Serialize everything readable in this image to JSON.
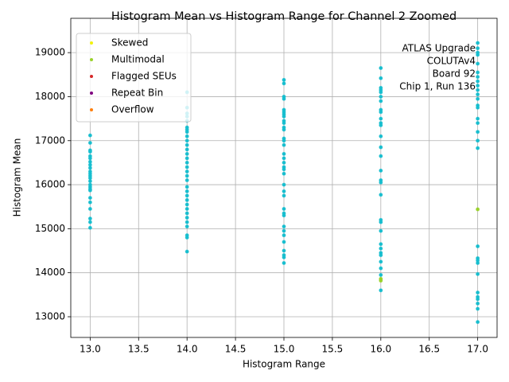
{
  "chart_data": {
    "type": "scatter",
    "title": "Histogram Mean vs Histogram Range for Channel 2 Zoomed",
    "x_label": "Histogram Range",
    "y_label": "Histogram Mean",
    "annotation": [
      "ATLAS Upgrade",
      "COLUTAv4",
      "Board 92",
      "Chip 1, Run 136"
    ],
    "xlim": [
      12.8,
      17.2
    ],
    "ylim": [
      12530,
      19780
    ],
    "xticks": [
      {
        "value": 13,
        "label": "13.0"
      },
      {
        "value": 13.5,
        "label": "13.5"
      },
      {
        "value": 14,
        "label": "14.0"
      },
      {
        "value": 14.5,
        "label": "14.5"
      },
      {
        "value": 15,
        "label": "15.0"
      },
      {
        "value": 15.5,
        "label": "15.5"
      },
      {
        "value": 16,
        "label": "16.0"
      },
      {
        "value": 16.5,
        "label": "16.5"
      },
      {
        "value": 17,
        "label": "17.0"
      }
    ],
    "yticks": [
      13000,
      14000,
      15000,
      16000,
      17000,
      18000,
      19000
    ],
    "grid": true,
    "legend": "upper left",
    "series": [
      {
        "color": "#17becf",
        "x": [
          13,
          13,
          13,
          13,
          13,
          13,
          13,
          13,
          13,
          13,
          13,
          13,
          13,
          13,
          13,
          13,
          13,
          13,
          13,
          13,
          13,
          13,
          13,
          13,
          14,
          14,
          14,
          14,
          14,
          14,
          14,
          14,
          14,
          14,
          14,
          14,
          14,
          14,
          14,
          14,
          14,
          14,
          14,
          14,
          14,
          14,
          14,
          14,
          14,
          14,
          14,
          14,
          14,
          14,
          14,
          14,
          15,
          15,
          15,
          15,
          15,
          15,
          15,
          15,
          15,
          15,
          15,
          15,
          15,
          15,
          15,
          15,
          15,
          15,
          15,
          15,
          15,
          15,
          15,
          15,
          15,
          15,
          15,
          15,
          15,
          15,
          15,
          15,
          15,
          15,
          15,
          16,
          16,
          16,
          16,
          16,
          16,
          16,
          16,
          16,
          16,
          16,
          16,
          16,
          16,
          16,
          16,
          16,
          16,
          16,
          16,
          16,
          16,
          16,
          16,
          16,
          16,
          16,
          16,
          16,
          16,
          17,
          17,
          17,
          17,
          17,
          17,
          17,
          17,
          17,
          17,
          17,
          17,
          17,
          17,
          17,
          17,
          17,
          17,
          17,
          17,
          17,
          17,
          17,
          17,
          17,
          17,
          17,
          17,
          17,
          17
        ],
        "values": [
          17120,
          16950,
          16780,
          16750,
          16650,
          16600,
          16520,
          16450,
          16380,
          16300,
          16250,
          16200,
          16150,
          16080,
          16000,
          15950,
          15900,
          15870,
          15700,
          15600,
          15450,
          15230,
          15150,
          15020,
          18100,
          17750,
          17620,
          17550,
          17450,
          17300,
          17250,
          17200,
          17100,
          17000,
          16900,
          16800,
          16700,
          16600,
          16500,
          16400,
          16300,
          16200,
          16100,
          15950,
          15850,
          15750,
          15650,
          15550,
          15450,
          15350,
          15250,
          15150,
          15050,
          14850,
          14800,
          14480,
          18380,
          18300,
          18000,
          17950,
          17700,
          17650,
          17600,
          17550,
          17450,
          17400,
          17300,
          17250,
          17050,
          17000,
          16900,
          16700,
          16600,
          16500,
          16400,
          16350,
          16250,
          16000,
          15850,
          15750,
          15450,
          15350,
          15300,
          15050,
          14950,
          14850,
          14700,
          14500,
          14400,
          14350,
          14220,
          18650,
          18420,
          18200,
          18150,
          18100,
          18000,
          17900,
          17700,
          17650,
          17500,
          17400,
          17350,
          17100,
          16850,
          16650,
          16320,
          16100,
          16050,
          15770,
          15200,
          15150,
          14950,
          14650,
          14550,
          14450,
          14400,
          14250,
          14100,
          13950,
          13600,
          19220,
          19100,
          19000,
          18950,
          18750,
          18550,
          18450,
          18350,
          18250,
          18150,
          18050,
          17950,
          17800,
          17750,
          17500,
          17400,
          17200,
          17000,
          16830,
          14600,
          14330,
          14280,
          14220,
          13970,
          13550,
          13450,
          13400,
          13300,
          13180,
          12880
        ]
      },
      {
        "name": "Skewed",
        "color": "#f2f20d",
        "x": [],
        "values": []
      },
      {
        "name": "Multimodal",
        "color": "#9ad22a",
        "x": [
          17,
          16,
          16
        ],
        "values": [
          15440,
          13860,
          13820
        ]
      },
      {
        "name": "Flagged SEUs",
        "color": "#d62728",
        "x": [],
        "values": []
      },
      {
        "name": "Repeat Bin",
        "color": "#800080",
        "x": [],
        "values": []
      },
      {
        "name": "Overflow",
        "color": "#ff7f0e",
        "x": [],
        "values": []
      }
    ]
  }
}
